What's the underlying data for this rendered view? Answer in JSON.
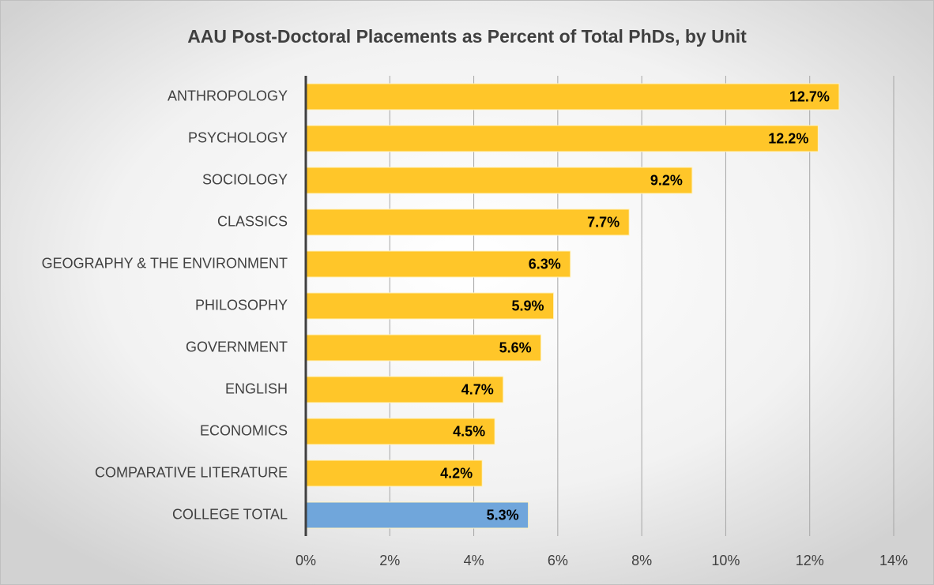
{
  "chart_data": {
    "type": "bar",
    "orientation": "horizontal",
    "title": "AAU Post-Doctoral Placements as Percent of Total PhDs, by Unit",
    "categories": [
      "ANTHROPOLOGY",
      "PSYCHOLOGY",
      "SOCIOLOGY",
      "CLASSICS",
      "GEOGRAPHY & THE ENVIRONMENT",
      "PHILOSOPHY",
      "GOVERNMENT",
      "ENGLISH",
      "ECONOMICS",
      "COMPARATIVE LITERATURE",
      "COLLEGE TOTAL"
    ],
    "values": [
      12.7,
      12.2,
      9.2,
      7.7,
      6.3,
      5.9,
      5.6,
      4.7,
      4.5,
      4.2,
      5.3
    ],
    "value_labels": [
      "12.7%",
      "12.2%",
      "9.2%",
      "7.7%",
      "6.3%",
      "5.9%",
      "5.6%",
      "4.7%",
      "4.5%",
      "4.2%",
      "5.3%"
    ],
    "colors": [
      "#ffc629",
      "#ffc629",
      "#ffc629",
      "#ffc629",
      "#ffc629",
      "#ffc629",
      "#ffc629",
      "#ffc629",
      "#ffc629",
      "#ffc629",
      "#70a6db"
    ],
    "xlim": [
      0,
      14
    ],
    "xticks": [
      {
        "value": 0,
        "label": "0%"
      },
      {
        "value": 2,
        "label": "2%"
      },
      {
        "value": 4,
        "label": "4%"
      },
      {
        "value": 6,
        "label": "6%"
      },
      {
        "value": 8,
        "label": "8%"
      },
      {
        "value": 10,
        "label": "10%"
      },
      {
        "value": 12,
        "label": "12%"
      },
      {
        "value": 14,
        "label": "14%"
      }
    ],
    "grid": true
  }
}
